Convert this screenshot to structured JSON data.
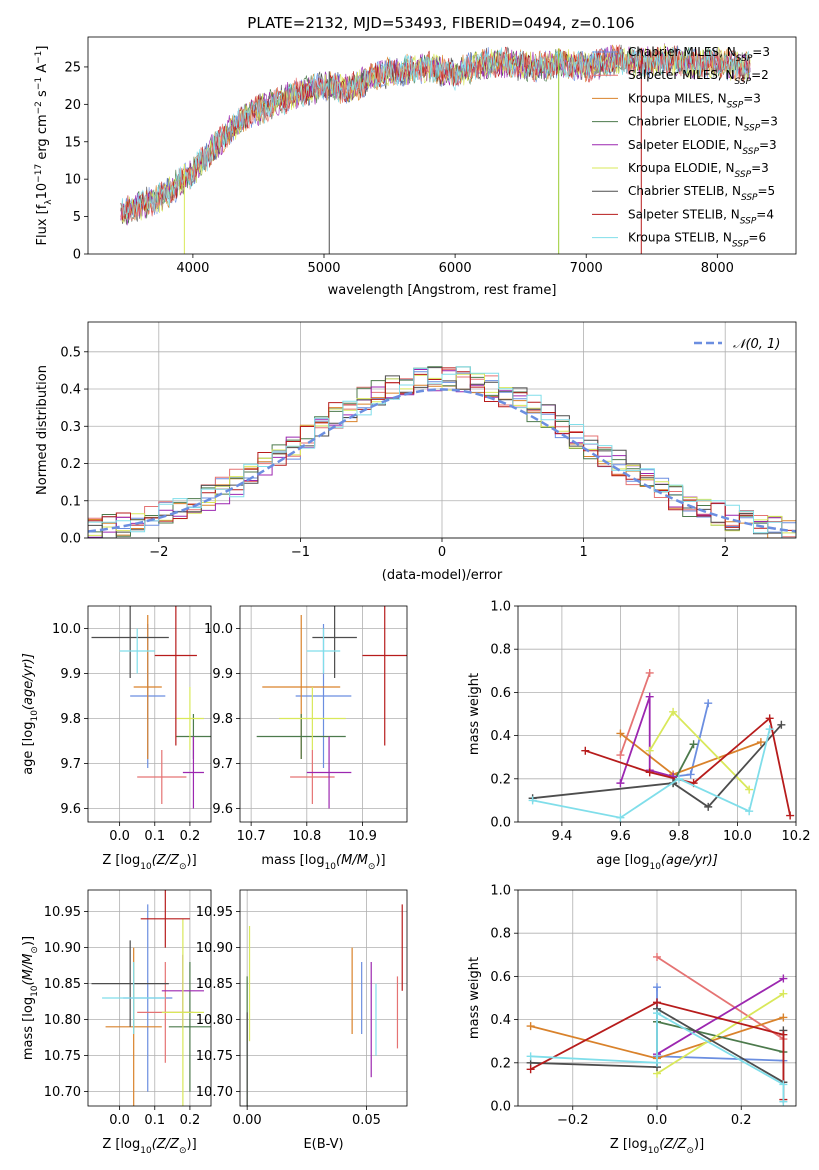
{
  "figure": {
    "title": "PLATE=2132, MJD=53493, FIBERID=0494, z=0.106"
  },
  "legend_spectrum": [
    {
      "label": "Chabrier MILES, N",
      "sub": "SSP",
      "tail": "=3",
      "color": "#6b8ee0"
    },
    {
      "label": "Salpeter MILES, N",
      "sub": "SSP",
      "tail": "=2",
      "color": "#e57373"
    },
    {
      "label": "Kroupa MILES, N",
      "sub": "SSP",
      "tail": "=3",
      "color": "#d9822b"
    },
    {
      "label": "Chabrier ELODIE, N",
      "sub": "SSP",
      "tail": "=3",
      "color": "#4c7a4c"
    },
    {
      "label": "Salpeter ELODIE, N",
      "sub": "SSP",
      "tail": "=3",
      "color": "#9c27b0"
    },
    {
      "label": "Kroupa ELODIE, N",
      "sub": "SSP",
      "tail": "=3",
      "color": "#d9e85a"
    },
    {
      "label": "Chabrier STELIB, N",
      "sub": "SSP",
      "tail": "=5",
      "color": "#4d4d4d"
    },
    {
      "label": "Salpeter STELIB, N",
      "sub": "SSP",
      "tail": "=4",
      "color": "#b71c1c"
    },
    {
      "label": "Kroupa STELIB, N",
      "sub": "SSP",
      "tail": "=6",
      "color": "#80deea"
    }
  ],
  "legend_hist": {
    "label": "𝒩(0, 1)",
    "color": "#6b8ee0"
  },
  "chart_data": [
    {
      "id": "spectrum",
      "type": "line",
      "xlabel": "wavelength [Angstrom, rest frame]",
      "ylabel_main": "Flux [f",
      "ylabel_sub": "λ",
      "ylabel_rest": "10",
      "ylabel_sup": "−17",
      "ylabel_tail": " erg cm",
      "ylabel_sup2": "−2",
      "ylabel_tail2": " s",
      "ylabel_sup3": "−1",
      "ylabel_tail3": " A",
      "ylabel_sup4": "−1",
      "ylabel_end": "]",
      "xlim": [
        3200,
        8600
      ],
      "ylim": [
        0,
        29
      ],
      "xticks": [
        "4000",
        "5000",
        "6000",
        "7000",
        "8000"
      ],
      "yticks": [
        "0",
        "5",
        "10",
        "15",
        "20",
        "25"
      ],
      "x": [
        3450,
        3600,
        3800,
        4000,
        4200,
        4400,
        4600,
        4800,
        5000,
        5200,
        5400,
        5600,
        5800,
        6000,
        6200,
        6400,
        6600,
        6800,
        7000,
        7200,
        7400,
        7600,
        7800,
        8000,
        8200
      ],
      "y": [
        5.5,
        6.5,
        8,
        11,
        15,
        18.5,
        20,
        21.5,
        22.5,
        22,
        24,
        24.5,
        25,
        24,
        25.5,
        25.5,
        25,
        25.5,
        25,
        26,
        25.5,
        26,
        25.5,
        25.5,
        25
      ],
      "grid": false
    },
    {
      "id": "residuals",
      "type": "histogram",
      "xlabel": "(data-model)/error",
      "ylabel": "Normed distribution",
      "xlim": [
        -2.5,
        2.5
      ],
      "ylim": [
        0,
        0.58
      ],
      "xticks": [
        "−2",
        "−1",
        "0",
        "1",
        "2"
      ],
      "yticks": [
        "0.0",
        "0.1",
        "0.2",
        "0.3",
        "0.4",
        "0.5"
      ],
      "grid": true,
      "bin_width": 0.1,
      "series_offsets": [
        0.01,
        -0.01,
        0.02,
        -0.015,
        0.03,
        -0.02,
        0.015,
        -0.025,
        0.025
      ]
    },
    {
      "id": "z_age",
      "type": "errorbar",
      "xlabel": "Z [log",
      "xlabel_sub": "10",
      "xlabel_rest": "(Z/Z",
      "xlabel_sub2": "⊙",
      "xlabel_end": ")]",
      "ylabel": "age  [log",
      "ylabel_sub": "10",
      "ylabel_rest": "(age/yr)]",
      "xlim": [
        -0.09,
        0.26
      ],
      "ylim": [
        9.57,
        10.05
      ],
      "xticks": [
        "0.0",
        "0.1",
        "0.2"
      ],
      "yticks": [
        "9.6",
        "9.7",
        "9.8",
        "9.9",
        "10.0"
      ],
      "grid": true,
      "points": [
        {
          "x": 0.08,
          "y": 9.85,
          "xerr": 0.05,
          "yerr": 0.16,
          "color": "#6b8ee0"
        },
        {
          "x": 0.12,
          "y": 9.67,
          "xerr": 0.07,
          "yerr": 0.06,
          "color": "#e57373"
        },
        {
          "x": 0.08,
          "y": 9.87,
          "xerr": 0.04,
          "yerr": 0.16,
          "color": "#d9822b"
        },
        {
          "x": 0.21,
          "y": 9.76,
          "xerr": 0.05,
          "yerr": 0.05,
          "color": "#4c7a4c"
        },
        {
          "x": 0.21,
          "y": 9.68,
          "xerr": 0.03,
          "yerr": 0.08,
          "color": "#9c27b0"
        },
        {
          "x": 0.2,
          "y": 9.8,
          "xerr": 0.04,
          "yerr": 0.07,
          "color": "#d9e85a"
        },
        {
          "x": 0.03,
          "y": 9.98,
          "xerr": 0.11,
          "yerr": 0.09,
          "color": "#4d4d4d"
        },
        {
          "x": 0.16,
          "y": 9.94,
          "xerr": 0.06,
          "yerr": 0.2,
          "color": "#b71c1c"
        },
        {
          "x": 0.05,
          "y": 9.95,
          "xerr": 0.05,
          "yerr": 0.05,
          "color": "#80deea"
        }
      ]
    },
    {
      "id": "mass_age",
      "type": "errorbar",
      "xlabel": "mass [log",
      "xlabel_sub": "10",
      "xlabel_rest": "(M/M",
      "xlabel_sub2": "⊙",
      "xlabel_end": ")]",
      "xlim": [
        10.68,
        10.98
      ],
      "ylim": [
        9.57,
        10.05
      ],
      "xticks": [
        "10.7",
        "10.8",
        "10.9"
      ],
      "yticks": [
        "9.6",
        "9.7",
        "9.8",
        "9.9",
        "10.0"
      ],
      "grid": true,
      "points": [
        {
          "x": 10.83,
          "y": 9.85,
          "xerr": 0.05,
          "yerr": 0.16,
          "color": "#6b8ee0"
        },
        {
          "x": 10.81,
          "y": 9.67,
          "xerr": 0.04,
          "yerr": 0.06,
          "color": "#e57373"
        },
        {
          "x": 10.79,
          "y": 9.87,
          "xerr": 0.07,
          "yerr": 0.16,
          "color": "#d9822b"
        },
        {
          "x": 10.79,
          "y": 9.76,
          "xerr": 0.08,
          "yerr": 0.05,
          "color": "#4c7a4c"
        },
        {
          "x": 10.84,
          "y": 9.68,
          "xerr": 0.04,
          "yerr": 0.08,
          "color": "#9c27b0"
        },
        {
          "x": 10.81,
          "y": 9.8,
          "xerr": 0.06,
          "yerr": 0.07,
          "color": "#d9e85a"
        },
        {
          "x": 10.85,
          "y": 9.98,
          "xerr": 0.04,
          "yerr": 0.09,
          "color": "#4d4d4d"
        },
        {
          "x": 10.94,
          "y": 9.94,
          "xerr": 0.04,
          "yerr": 0.2,
          "color": "#b71c1c"
        },
        {
          "x": 10.83,
          "y": 9.95,
          "xerr": 0.03,
          "yerr": 0.05,
          "color": "#80deea"
        }
      ]
    },
    {
      "id": "age_weight",
      "type": "line",
      "xlabel": "age  [log",
      "xlabel_sub": "10",
      "xlabel_rest": "(age/yr)]",
      "ylabel": "mass weight",
      "xlim": [
        9.25,
        10.2
      ],
      "ylim": [
        0,
        1
      ],
      "xticks": [
        "9.4",
        "9.6",
        "9.8",
        "10.0",
        "10.2"
      ],
      "yticks": [
        "0.0",
        "0.2",
        "0.4",
        "0.6",
        "0.8",
        "1.0"
      ],
      "grid": true,
      "series": [
        {
          "color": "#6b8ee0",
          "x": [
            9.78,
            9.84,
            9.9
          ],
          "y": [
            0.21,
            0.22,
            0.55
          ]
        },
        {
          "color": "#e57373",
          "x": [
            9.6,
            9.7
          ],
          "y": [
            0.31,
            0.69
          ]
        },
        {
          "color": "#d9822b",
          "x": [
            9.6,
            9.78,
            10.08
          ],
          "y": [
            0.41,
            0.22,
            0.37
          ]
        },
        {
          "color": "#4c7a4c",
          "x": [
            9.78,
            9.85
          ],
          "y": [
            0.18,
            0.36
          ]
        },
        {
          "color": "#9c27b0",
          "x": [
            9.6,
            9.7,
            9.7,
            9.78
          ],
          "y": [
            0.18,
            0.58,
            0.24,
            0.21
          ]
        },
        {
          "color": "#d9e85a",
          "x": [
            9.7,
            9.78,
            10.04
          ],
          "y": [
            0.33,
            0.51,
            0.15
          ]
        },
        {
          "color": "#4d4d4d",
          "x": [
            9.3,
            9.78,
            9.9,
            10.15
          ],
          "y": [
            0.11,
            0.18,
            0.07,
            0.45
          ]
        },
        {
          "color": "#b71c1c",
          "x": [
            9.48,
            9.7,
            9.85,
            10.11,
            10.18
          ],
          "y": [
            0.33,
            0.23,
            0.18,
            0.48,
            0.03
          ]
        },
        {
          "color": "#80deea",
          "x": [
            9.3,
            9.6,
            9.8,
            10.04,
            10.11
          ],
          "y": [
            0.1,
            0.02,
            0.2,
            0.05,
            0.43
          ]
        }
      ]
    },
    {
      "id": "z_mass",
      "type": "errorbar",
      "ylabel": "mass [log",
      "ylabel_sub": "10",
      "ylabel_rest": "(M/M",
      "ylabel_sub2": "⊙",
      "ylabel_end": ")]",
      "xlabel": "Z [log",
      "xlabel_sub": "10",
      "xlabel_rest": "(Z/Z",
      "xlabel_sub2": "⊙",
      "xlabel_end": ")]",
      "xlim": [
        -0.09,
        0.26
      ],
      "ylim": [
        10.68,
        10.98
      ],
      "xticks": [
        "0.0",
        "0.1",
        "0.2"
      ],
      "yticks": [
        "10.70",
        "10.75",
        "10.80",
        "10.85",
        "10.90",
        "10.95"
      ],
      "grid": true,
      "points": [
        {
          "x": 0.08,
          "y": 10.83,
          "xerr": 0.07,
          "yerr": 0.13,
          "color": "#6b8ee0"
        },
        {
          "x": 0.13,
          "y": 10.81,
          "xerr": 0.08,
          "yerr": 0.07,
          "color": "#e57373"
        },
        {
          "x": 0.04,
          "y": 10.79,
          "xerr": 0.08,
          "yerr": 0.11,
          "color": "#d9822b"
        },
        {
          "x": 0.2,
          "y": 10.79,
          "xerr": 0.06,
          "yerr": 0.09,
          "color": "#4c7a4c"
        },
        {
          "x": 0.18,
          "y": 10.84,
          "xerr": 0.06,
          "yerr": 0.05,
          "color": "#9c27b0"
        },
        {
          "x": 0.18,
          "y": 10.81,
          "xerr": 0.06,
          "yerr": 0.13,
          "color": "#d9e85a"
        },
        {
          "x": 0.03,
          "y": 10.85,
          "xerr": 0.11,
          "yerr": 0.06,
          "color": "#4d4d4d"
        },
        {
          "x": 0.13,
          "y": 10.94,
          "xerr": 0.07,
          "yerr": 0.04,
          "color": "#b71c1c"
        },
        {
          "x": 0.04,
          "y": 10.83,
          "xerr": 0.09,
          "yerr": 0.05,
          "color": "#80deea"
        }
      ]
    },
    {
      "id": "ebv_mass",
      "type": "errorbar",
      "xlabel": "E(B-V)",
      "xlim": [
        -0.003,
        0.067
      ],
      "ylim": [
        10.68,
        10.98
      ],
      "xticks": [
        "0.00",
        "0.05"
      ],
      "yticks": [
        "10.70",
        "10.75",
        "10.80",
        "10.85",
        "10.90",
        "10.95"
      ],
      "grid": true,
      "points": [
        {
          "x": 0.048,
          "y": 10.83,
          "xerr": 0,
          "yerr": 0.05,
          "color": "#6b8ee0"
        },
        {
          "x": 0.063,
          "y": 10.81,
          "xerr": 0,
          "yerr": 0.05,
          "color": "#e57373"
        },
        {
          "x": 0.044,
          "y": 10.84,
          "xerr": 0,
          "yerr": 0.06,
          "color": "#d9822b"
        },
        {
          "x": 0.0,
          "y": 10.77,
          "xerr": 0,
          "yerr": 0.09,
          "color": "#4c7a4c"
        },
        {
          "x": 0.052,
          "y": 10.8,
          "xerr": 0,
          "yerr": 0.08,
          "color": "#9c27b0"
        },
        {
          "x": 0.001,
          "y": 10.85,
          "xerr": 0,
          "yerr": 0.08,
          "color": "#d9e85a"
        },
        {
          "x": 0.0,
          "y": 10.74,
          "xerr": 0,
          "yerr": 0.07,
          "color": "#4d4d4d"
        },
        {
          "x": 0.065,
          "y": 10.9,
          "xerr": 0,
          "yerr": 0.06,
          "color": "#b71c1c"
        },
        {
          "x": 0.054,
          "y": 10.8,
          "xerr": 0,
          "yerr": 0.05,
          "color": "#80deea"
        }
      ]
    },
    {
      "id": "z_weight",
      "type": "line",
      "xlabel": "Z [log",
      "xlabel_sub": "10",
      "xlabel_rest": "(Z/Z",
      "xlabel_sub2": "⊙",
      "xlabel_end": ")]",
      "ylabel": "mass weight",
      "xlim": [
        -0.33,
        0.33
      ],
      "ylim": [
        0,
        1
      ],
      "xticks": [
        "−0.2",
        "0.0",
        "0.2"
      ],
      "yticks": [
        "0.0",
        "0.2",
        "0.4",
        "0.6",
        "0.8",
        "1.0"
      ],
      "grid": true,
      "series": [
        {
          "color": "#6b8ee0",
          "x": [
            0.0,
            0.0,
            0.3
          ],
          "y": [
            0.55,
            0.23,
            0.21
          ]
        },
        {
          "color": "#e57373",
          "x": [
            0.0,
            0.3
          ],
          "y": [
            0.69,
            0.31
          ]
        },
        {
          "color": "#d9822b",
          "x": [
            -0.3,
            0.0,
            0.3
          ],
          "y": [
            0.37,
            0.22,
            0.41
          ]
        },
        {
          "color": "#4c7a4c",
          "x": [
            0.0,
            0.3
          ],
          "y": [
            0.39,
            0.25
          ]
        },
        {
          "color": "#9c27b0",
          "x": [
            0.0,
            0.3
          ],
          "y": [
            0.24,
            0.59
          ]
        },
        {
          "color": "#d9e85a",
          "x": [
            0.0,
            0.3
          ],
          "y": [
            0.15,
            0.52
          ]
        },
        {
          "color": "#4d4d4d",
          "x": [
            -0.3,
            0.0,
            0.0,
            0.3,
            0.3
          ],
          "y": [
            0.2,
            0.18,
            0.45,
            0.11,
            0.35
          ]
        },
        {
          "color": "#b71c1c",
          "x": [
            -0.3,
            0.0,
            0.3,
            0.3
          ],
          "y": [
            0.17,
            0.48,
            0.33,
            0.03
          ]
        },
        {
          "color": "#80deea",
          "x": [
            -0.3,
            0.0,
            0.0,
            0.3,
            0.3
          ],
          "y": [
            0.23,
            0.2,
            0.43,
            0.1,
            0.02
          ]
        }
      ]
    }
  ]
}
